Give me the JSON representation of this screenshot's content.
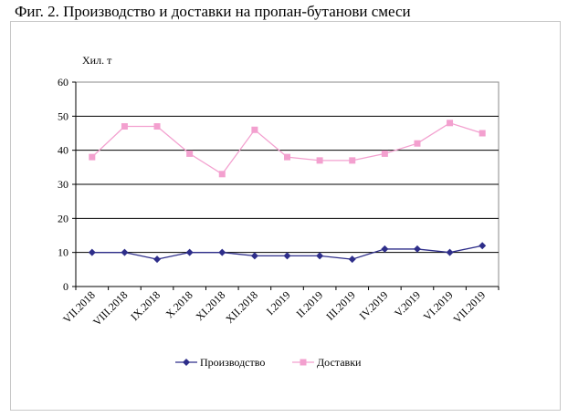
{
  "title": "Фиг. 2. Производство и доставки на пропан-бутанови смеси",
  "chart_data": {
    "type": "line",
    "title": "Фиг. 2. Производство и доставки на пропан-бутанови смеси",
    "ylabel": "Хил. т",
    "xlabel": "",
    "ylim": [
      0,
      60
    ],
    "yticks": [
      0,
      10,
      20,
      30,
      40,
      50,
      60
    ],
    "grid": true,
    "legend_position": "bottom",
    "categories": [
      "VII.2018",
      "VIII.2018",
      "IX.2018",
      "X.2018",
      "XI.2018",
      "XII.2018",
      "I.2019",
      "II.2019",
      "III.2019",
      "IV.2019",
      "V.2019",
      "VI.2019",
      "VII.2019"
    ],
    "series": [
      {
        "name": "Производство",
        "color": "#2e2e8a",
        "marker": "diamond",
        "values": [
          10,
          10,
          8,
          10,
          10,
          9,
          9,
          9,
          8,
          11,
          11,
          10,
          12
        ]
      },
      {
        "name": "Доставки",
        "color": "#f3a0cf",
        "marker": "square",
        "values": [
          38,
          47,
          47,
          39,
          33,
          46,
          38,
          37,
          37,
          39,
          42,
          48,
          45
        ]
      }
    ]
  }
}
